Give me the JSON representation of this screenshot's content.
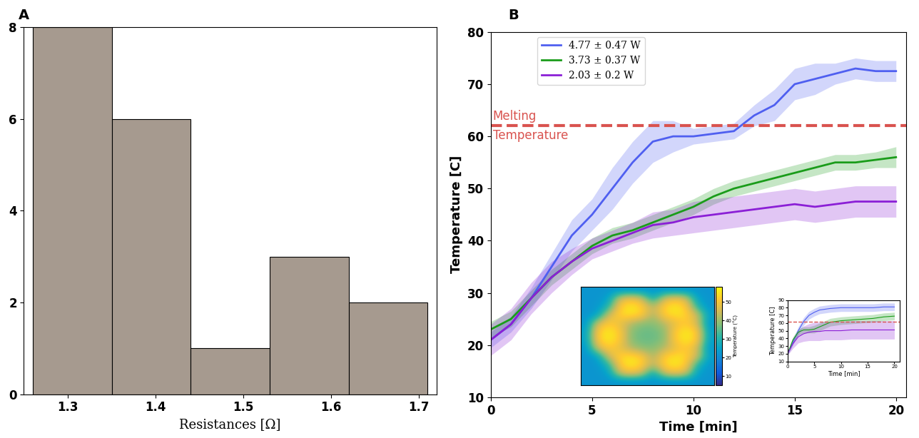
{
  "chart_data": [
    {
      "type": "histogram",
      "panel": "A",
      "bins": [
        1.26,
        1.35,
        1.44,
        1.53,
        1.62,
        1.71
      ],
      "counts": [
        8,
        6,
        1,
        3,
        2
      ],
      "color": "#a69a8f",
      "x_label": "Resistances [Ω]",
      "xlim": [
        1.25,
        1.72
      ],
      "xticks": [
        1.3,
        1.4,
        1.5,
        1.6,
        1.7
      ],
      "ylim": [
        0,
        8
      ],
      "yticks": [
        0,
        2,
        4,
        6,
        8
      ]
    },
    {
      "type": "line",
      "panel": "B",
      "x_label": "Time [min]",
      "y_label": "Temperature [C]",
      "xlim": [
        0,
        20.5
      ],
      "xticks": [
        0,
        5,
        10,
        15,
        20
      ],
      "ylim": [
        10,
        80
      ],
      "yticks": [
        10,
        20,
        30,
        40,
        50,
        60,
        70,
        80
      ],
      "legend": "upper left",
      "reference_line": {
        "value": 62,
        "labels": [
          "Melting",
          "Temperature"
        ],
        "color": "#d9534f",
        "line_style": "dashed"
      },
      "x": [
        0,
        1,
        2,
        3,
        4,
        5,
        6,
        7,
        8,
        9,
        10,
        11,
        12,
        13,
        14,
        15,
        16,
        17,
        18,
        19,
        20
      ],
      "series": [
        {
          "name": "4.77 ± 0.47 W",
          "color": "#4f5ff0",
          "values": [
            21,
            24,
            29,
            35,
            41,
            45,
            50,
            55,
            59,
            60,
            60,
            60.5,
            61,
            64,
            66,
            70,
            71,
            72,
            73,
            72.5,
            72.5
          ],
          "errors": [
            1.5,
            1.5,
            2,
            2.5,
            3,
            3,
            4,
            4,
            4,
            3,
            1.5,
            1.5,
            1.5,
            2,
            3,
            3,
            3,
            2,
            2,
            2,
            2
          ]
        },
        {
          "name": "3.73 ± 0.37 W",
          "color": "#1a9c1a",
          "values": [
            23,
            25,
            29,
            33,
            36,
            39,
            41,
            42,
            43.5,
            45,
            46.5,
            48.5,
            50,
            51,
            52,
            53,
            54,
            55,
            55,
            55.5,
            56
          ],
          "errors": [
            1.5,
            1.5,
            1.5,
            1.5,
            1.5,
            1.5,
            1.5,
            1.5,
            1.5,
            1.5,
            1.5,
            1.5,
            1.5,
            1.5,
            1.5,
            1.5,
            1.5,
            1.5,
            1.5,
            1.5,
            2
          ]
        },
        {
          "name": "2.03 ± 0.2 W",
          "color": "#8b1fd6",
          "values": [
            21,
            24,
            29,
            33,
            36,
            38.5,
            40,
            41.5,
            43,
            43.5,
            44.5,
            45,
            45.5,
            46,
            46.5,
            47,
            46.5,
            47,
            47.5,
            47.5,
            47.5
          ],
          "errors": [
            3,
            3,
            3,
            3,
            2.5,
            2,
            2,
            2,
            2.5,
            2.5,
            3,
            3,
            3,
            3,
            3,
            3,
            3,
            3,
            3,
            3,
            3
          ]
        }
      ]
    },
    {
      "type": "heatmap",
      "tick_labels": false,
      "cells": [
        [
          22,
          22,
          22,
          22,
          22,
          22,
          22,
          22,
          22,
          22,
          22,
          22
        ],
        [
          22,
          22,
          24,
          45,
          50,
          45,
          26,
          45,
          50,
          45,
          24,
          22
        ],
        [
          22,
          22,
          30,
          52,
          56,
          53,
          42,
          53,
          56,
          52,
          30,
          22
        ],
        [
          22,
          24,
          45,
          53,
          55,
          52,
          40,
          52,
          55,
          53,
          45,
          24
        ],
        [
          22,
          45,
          52,
          48,
          42,
          38,
          38,
          42,
          48,
          52,
          45,
          22
        ],
        [
          24,
          52,
          56,
          52,
          38,
          36,
          36,
          38,
          52,
          56,
          52,
          24
        ],
        [
          24,
          52,
          56,
          52,
          38,
          36,
          36,
          38,
          52,
          56,
          52,
          24
        ],
        [
          22,
          45,
          52,
          48,
          42,
          38,
          38,
          42,
          48,
          52,
          45,
          22
        ],
        [
          22,
          24,
          45,
          53,
          55,
          52,
          40,
          52,
          55,
          53,
          45,
          24
        ],
        [
          22,
          22,
          30,
          52,
          56,
          53,
          42,
          53,
          56,
          52,
          30,
          22
        ],
        [
          22,
          22,
          24,
          45,
          50,
          45,
          26,
          45,
          50,
          45,
          24,
          22
        ],
        [
          22,
          22,
          22,
          22,
          22,
          22,
          22,
          22,
          22,
          22,
          22,
          22
        ]
      ],
      "colorbar": {
        "label": "Temperature (°C)",
        "lim": [
          5,
          58
        ],
        "ticks": [
          10,
          20,
          30,
          40,
          50
        ]
      }
    },
    {
      "type": "line",
      "x_label": "Time [min]",
      "y_label": "Temperature [C]",
      "xlim": [
        0,
        21
      ],
      "xticks": [
        0,
        5,
        10,
        15,
        20
      ],
      "ylim": [
        10,
        90
      ],
      "yticks": [
        10,
        20,
        30,
        40,
        50,
        60,
        70,
        80,
        90
      ],
      "reference_line": {
        "value": 62,
        "color": "#d9534f",
        "line_style": "dashed"
      },
      "x": [
        0,
        1,
        2,
        3,
        4,
        5,
        6,
        7,
        8,
        10,
        12,
        14,
        16,
        18,
        20
      ],
      "series": [
        {
          "color": "#4f5ff0",
          "values": [
            20,
            35,
            50,
            62,
            70,
            74,
            77,
            78,
            79,
            80,
            80,
            80,
            80,
            81,
            81
          ],
          "errors": [
            2,
            4,
            5,
            5,
            5,
            5,
            5,
            5,
            5,
            5,
            5,
            5,
            5,
            5,
            5
          ]
        },
        {
          "color": "#1a9c1a",
          "values": [
            20,
            38,
            48,
            51,
            51,
            52,
            55,
            58,
            61,
            63,
            64,
            65,
            66,
            68,
            69
          ],
          "errors": [
            2,
            4,
            4,
            4,
            4,
            5,
            5,
            5,
            5,
            5,
            5,
            5,
            5,
            5,
            5
          ]
        },
        {
          "color": "#8b1fd6",
          "values": [
            20,
            33,
            42,
            46,
            48,
            49,
            49,
            50,
            50,
            50,
            51,
            51,
            51,
            51,
            51
          ],
          "errors": [
            2,
            6,
            8,
            10,
            11,
            12,
            12,
            12,
            12,
            12,
            12,
            12,
            12,
            12,
            12
          ]
        }
      ]
    }
  ]
}
